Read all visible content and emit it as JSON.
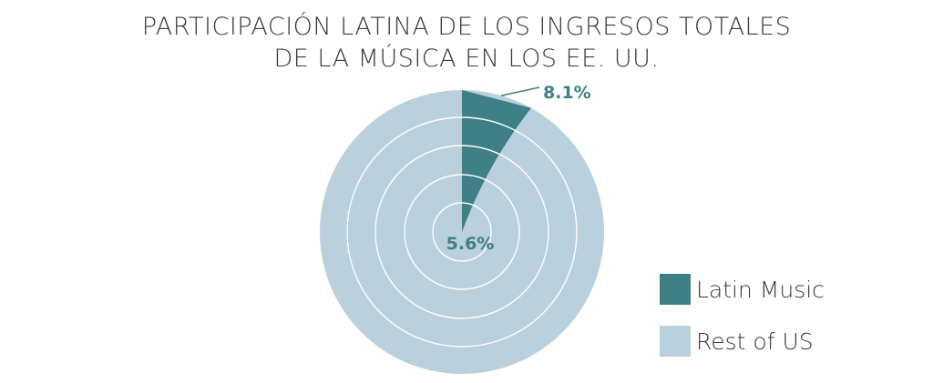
{
  "colors": {
    "latin": "#3f7f86",
    "rest": "#bad0dc",
    "ring": "#ffffff",
    "label": "#3f7f86"
  },
  "chart_data": {
    "type": "pie",
    "title_lines": [
      "PARTICIPACIÓN LATINA DE LOS INGRESOS TOTALES",
      "DE LA MÚSICA EN LOS EE. UU."
    ],
    "series": [
      {
        "name": "Latin Music",
        "values": [
          5.6,
          8.1
        ]
      },
      {
        "name": "Rest of US",
        "values": [
          94.4,
          91.9
        ]
      }
    ],
    "annotations": [
      {
        "text": "5.6%",
        "value": 5.6
      },
      {
        "text": "8.1%",
        "value": 8.1
      }
    ],
    "legend": {
      "position": "bottom-right",
      "items": [
        {
          "label": "Latin Music",
          "color": "#3f7f86"
        },
        {
          "label": "Rest of US",
          "color": "#bad0dc"
        }
      ]
    }
  }
}
